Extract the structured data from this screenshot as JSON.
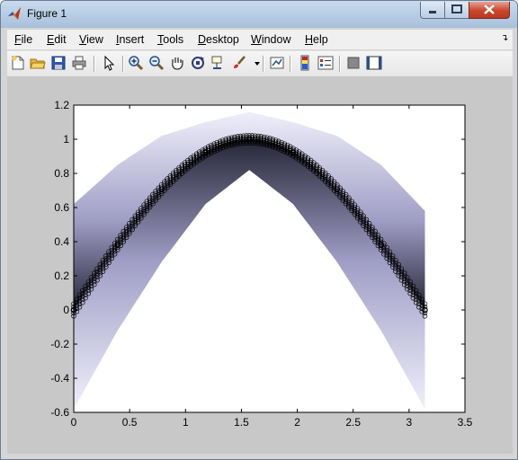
{
  "window": {
    "title": "Figure 1"
  },
  "menu": [
    {
      "label": "File",
      "u": "F"
    },
    {
      "label": "Edit",
      "u": "E"
    },
    {
      "label": "View",
      "u": "V"
    },
    {
      "label": "Insert",
      "u": "I"
    },
    {
      "label": "Tools",
      "u": "T"
    },
    {
      "label": "Desktop",
      "u": "D"
    },
    {
      "label": "Window",
      "u": "W"
    },
    {
      "label": "Help",
      "u": "H"
    }
  ],
  "toolbar": [
    "new-figure-icon",
    "open-file-icon",
    "save-icon",
    "print-icon",
    "edit-plot-arrow-icon",
    "zoom-in-icon",
    "zoom-out-icon",
    "pan-hand-icon",
    "rotate-3d-icon",
    "data-cursor-icon",
    "brush-icon",
    "brush-dropdown-icon",
    "link-plot-icon",
    "insert-colorbar-icon",
    "insert-legend-icon",
    "hide-plot-tools-icon",
    "show-plot-tools-icon"
  ],
  "chart_data": {
    "type": "line",
    "title": "",
    "xlabel": "",
    "ylabel": "",
    "xlim": [
      0,
      3.5
    ],
    "ylim": [
      -0.6,
      1.2
    ],
    "xticks": [
      0,
      0.5,
      1,
      1.5,
      2,
      2.5,
      3,
      3.5
    ],
    "yticks": [
      -0.6,
      -0.4,
      -0.2,
      0,
      0.2,
      0.4,
      0.6,
      0.8,
      1,
      1.2
    ],
    "xtick_labels": [
      "0",
      "0.5",
      "1",
      "1.5",
      "2",
      "2.5",
      "3",
      "3.5"
    ],
    "ytick_labels": [
      "-0.6",
      "-0.4",
      "-0.2",
      "0",
      "0.2",
      "0.4",
      "0.6",
      "0.8",
      "1",
      "1.2"
    ],
    "grid": false,
    "series": [
      {
        "x": [
          0,
          0.3927,
          0.7854,
          1.1781,
          1.5708,
          1.9635,
          2.3562,
          2.7489,
          3.1416
        ],
        "values": [
          -0.58,
          -0.12,
          0.28,
          0.62,
          0.82,
          0.62,
          0.28,
          -0.12,
          -0.58
        ],
        "color": "#f2f2fb",
        "style": "band-lower"
      },
      {
        "x": [
          0,
          0.3927,
          0.7854,
          1.1781,
          1.5708,
          1.9635,
          2.3562,
          2.7489,
          3.1416
        ],
        "values": [
          0.62,
          0.85,
          1.02,
          1.1,
          1.16,
          1.1,
          1.02,
          0.85,
          0.58
        ],
        "color": "#f2f2fb",
        "style": "band-upper"
      },
      {
        "x": [
          0,
          0.3927,
          0.7854,
          1.1781,
          1.5708,
          1.9635,
          2.3562,
          2.7489,
          3.1416
        ],
        "values": [
          0,
          0.3827,
          0.7071,
          0.9239,
          1,
          0.9239,
          0.7071,
          0.3827,
          0
        ],
        "color": "#000000",
        "style": "markers"
      }
    ]
  },
  "colors": {
    "band_light": "#eeeefa",
    "band_mid": "#9a98c2",
    "band_dark": "#1a1a2c",
    "axes_bg": "#ffffff",
    "figure_bg": "#c8c8c8"
  }
}
